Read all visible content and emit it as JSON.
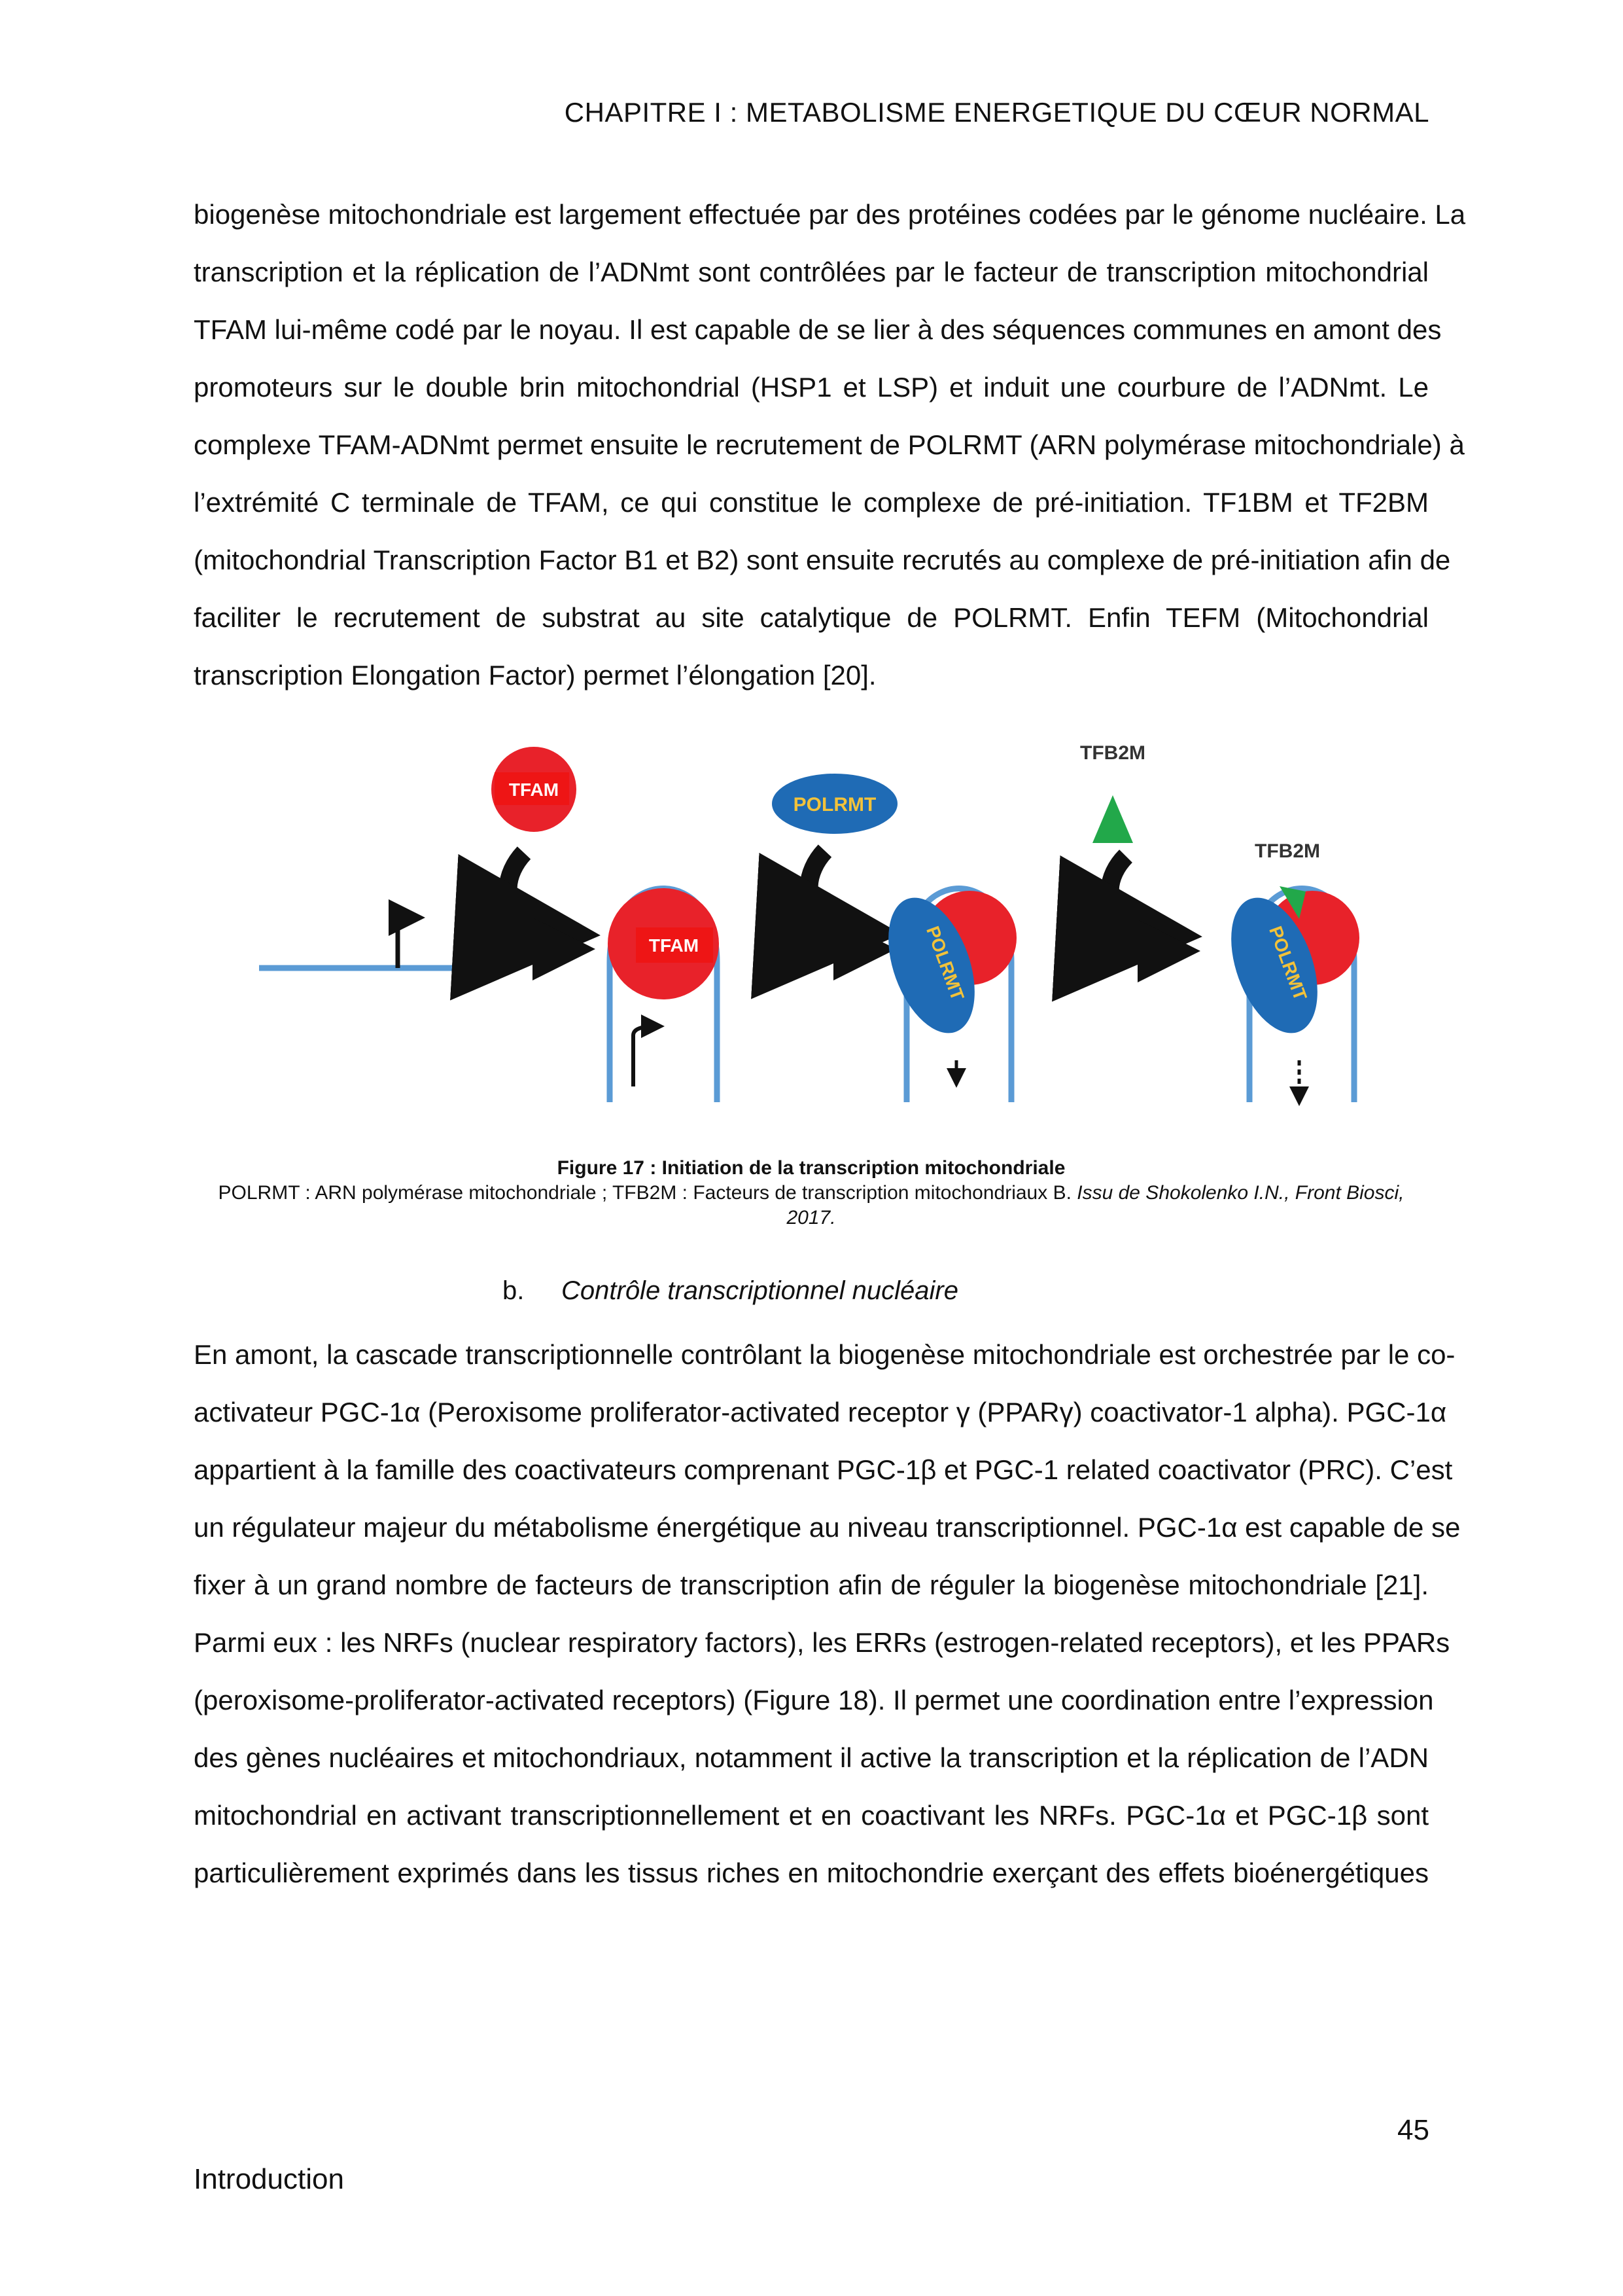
{
  "header": {
    "chapter": "CHAPITRE I : METABOLISME ENERGETIQUE DU CŒUR NORMAL"
  },
  "paragraph1": [
    "biogenèse mitochondriale est largement effectuée par des protéines codées par le génome nucléaire. La",
    "transcription et la réplication de l’ADNmt sont contrôlées par le facteur de transcription mitochondrial",
    "TFAM lui-même codé par le noyau. Il est capable de se lier à des séquences communes en amont des",
    "promoteurs sur le double brin mitochondrial (HSP1 et LSP) et induit une courbure de l’ADNmt. Le",
    "complexe TFAM-ADNmt permet ensuite le recrutement de POLRMT (ARN polymérase mitochondriale) à",
    "l’extrémité C terminale de TFAM, ce qui constitue le complexe de pré-initiation. TF1BM et TF2BM",
    "(mitochondrial Transcription Factor B1 et B2) sont ensuite recrutés au complexe de pré-initiation afin de",
    "faciliter le recrutement de substrat au site catalytique de POLRMT. Enfin TEFM (Mitochondrial",
    "transcription Elongation Factor) permet l’élongation [20]."
  ],
  "figure": {
    "labels": {
      "tfam_free": "TFAM",
      "tfam_bound": "TFAM",
      "polrmt_free": "POLRMT",
      "polrmt_bound_1": "POLRMT",
      "polrmt_bound_2": "POLRMT",
      "tfb2m_free": "TFB2M",
      "tfb2m_bound": "TFB2M"
    },
    "colors": {
      "dna": "#5b9bd5",
      "tfam": "#e8222a",
      "polrmt": "#1f6bb5",
      "polrmt_text": "#f2c23a",
      "tfb2m": "#22a84a",
      "arrow": "#111111"
    },
    "caption_title": "Figure 17 : Initiation de la transcription mitochondriale",
    "caption_text": "POLRMT : ARN polymérase mitochondriale ; TFB2M : Facteurs de transcription mitochondriaux B. ",
    "caption_source": "Issu de Shokolenko I.N., Front Biosci,",
    "caption_year": "2017."
  },
  "subsection": {
    "number": "b.",
    "title": "Contrôle transcriptionnel nucléaire"
  },
  "paragraph2": [
    "En amont, la cascade transcriptionnelle contrôlant la biogenèse mitochondriale est orchestrée par le co-",
    "activateur PGC-1α (Peroxisome proliferator-activated receptor γ (PPARγ) coactivator-1 alpha). PGC-1α",
    "appartient à la famille des coactivateurs comprenant PGC-1β et PGC-1 related coactivator (PRC). C’est",
    "un régulateur majeur du métabolisme énergétique au niveau transcriptionnel. PGC-1α est capable de se",
    "fixer à un grand nombre de facteurs de transcription afin de réguler la biogenèse mitochondriale [21].",
    "Parmi eux : les NRFs (nuclear respiratory factors), les ERRs (estrogen-related receptors), et les PPARs",
    "(peroxisome-proliferator-activated receptors) (Figure 18). Il permet une coordination entre l’expression",
    "des gènes nucléaires et mitochondriaux, notamment il active la transcription et la réplication de l’ADN",
    "mitochondrial en activant transcriptionnellement et en coactivant les NRFs. PGC-1α et PGC-1β sont",
    "particulièrement exprimés dans les tissus riches en mitochondrie exerçant des effets bioénergétiques"
  ],
  "footer": {
    "page_number": "45",
    "section": "Introduction"
  }
}
